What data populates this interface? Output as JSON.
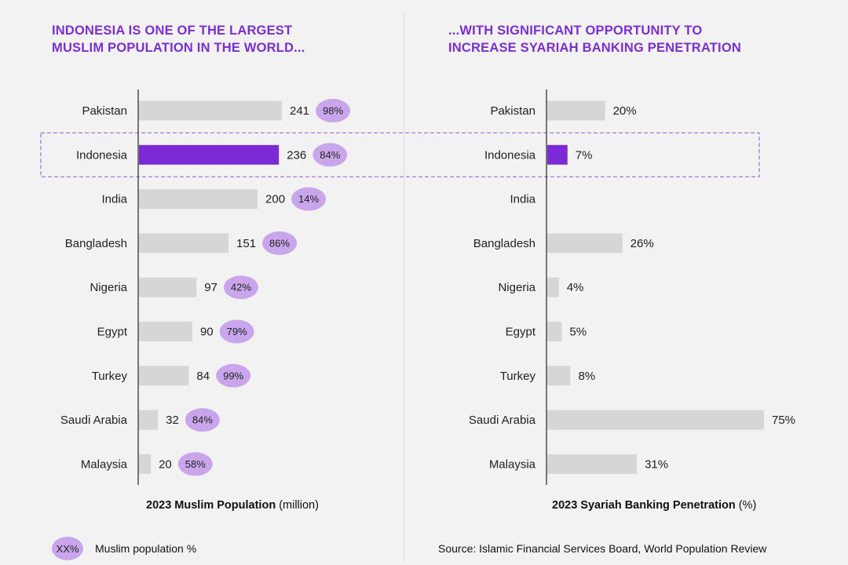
{
  "left_title": [
    "INDONESIA IS ONE OF THE LARGEST",
    "MUSLIM POPULATION IN THE WORLD..."
  ],
  "right_title": [
    "...WITH SIGNIFICANT OPPORTUNITY TO",
    "INCREASE SYARIAH BANKING PENETRATION"
  ],
  "left_caption": {
    "bold": "2023 Muslim Population",
    "unit": " (million)"
  },
  "right_caption": {
    "bold": "2023 Syariah Banking Penetration",
    "unit": " (%)"
  },
  "legend": {
    "bubble": "XX%",
    "label": "Muslim population %"
  },
  "source": "Source: Islamic Financial Services Board, World Population Review",
  "colors": {
    "highlight": "#7b2ad6",
    "bar": "#d6d6d6",
    "bubble": "#c9a6ec",
    "title": "#7b2fd0",
    "box_border": "#9b6fd6"
  },
  "chart_data": [
    {
      "type": "bar",
      "orientation": "horizontal",
      "title": "INDONESIA IS ONE OF THE LARGEST MUSLIM POPULATION IN THE WORLD...",
      "xlabel": "2023 Muslim Population (million)",
      "categories": [
        "Pakistan",
        "Indonesia",
        "India",
        "Bangladesh",
        "Nigeria",
        "Egypt",
        "Turkey",
        "Saudi Arabia",
        "Malaysia"
      ],
      "values": [
        241,
        236,
        200,
        151,
        97,
        90,
        84,
        32,
        20
      ],
      "labels": [
        "241",
        "236",
        "200",
        "151",
        "97",
        "90",
        "84",
        "32",
        "20"
      ],
      "share_labels": [
        "98%",
        "84%",
        "14%",
        "86%",
        "42%",
        "79%",
        "99%",
        "84%",
        "58%"
      ],
      "highlight": "Indonesia",
      "xlim": [
        0,
        241
      ]
    },
    {
      "type": "bar",
      "orientation": "horizontal",
      "title": "...WITH SIGNIFICANT OPPORTUNITY TO INCREASE SYARIAH BANKING PENETRATION",
      "xlabel": "2023 Syariah Banking Penetration (%)",
      "categories": [
        "Pakistan",
        "Indonesia",
        "India",
        "Bangladesh",
        "Nigeria",
        "Egypt",
        "Turkey",
        "Saudi Arabia",
        "Malaysia"
      ],
      "values": [
        20,
        7,
        null,
        26,
        4,
        5,
        8,
        75,
        31
      ],
      "labels": [
        "20%",
        "7%",
        "",
        "26%",
        "4%",
        "5%",
        "8%",
        "75%",
        "31%"
      ],
      "highlight": "Indonesia",
      "xlim": [
        0,
        75
      ]
    }
  ]
}
